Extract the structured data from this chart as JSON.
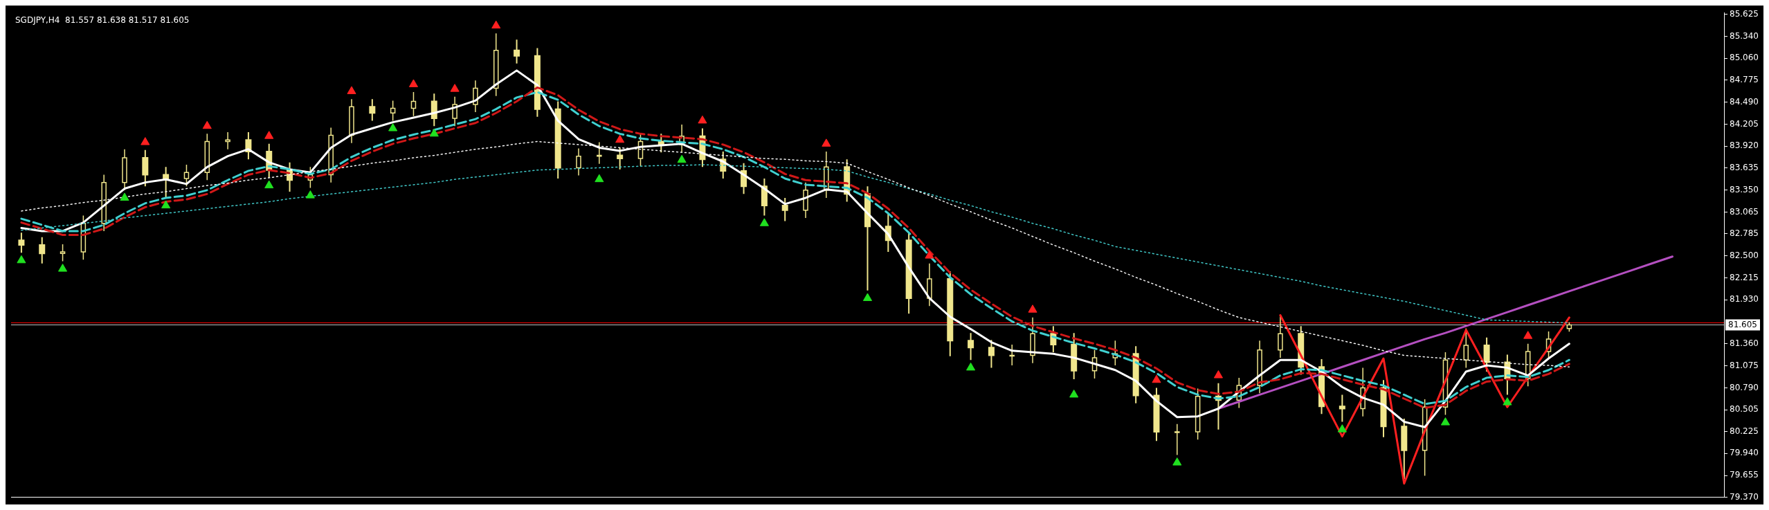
{
  "chart_data": {
    "type": "candlestick",
    "title": "SGDJPY,H4  81.557 81.638 81.517 81.605",
    "categories": [
      null,
      null,
      null,
      null,
      null,
      null,
      null,
      null,
      null,
      null,
      null,
      null,
      null,
      null,
      null,
      null,
      null,
      null,
      null,
      null,
      null,
      null,
      null,
      null,
      null,
      null,
      null,
      null,
      null,
      null,
      null,
      null,
      null,
      null,
      null,
      null,
      null,
      null,
      null,
      null,
      null,
      null,
      null,
      null,
      null,
      null,
      null,
      null,
      null,
      null,
      null,
      null,
      null,
      null,
      null,
      null,
      null,
      null,
      null,
      null,
      null,
      null,
      null,
      null,
      null,
      null,
      null,
      null,
      null,
      null,
      null,
      null,
      null,
      null,
      null,
      null,
      null,
      null,
      null,
      null,
      null,
      null,
      null
    ],
    "color": "#f0e68c",
    "ohlc": [
      [
        82.7,
        82.8,
        82.54,
        82.64
      ],
      [
        82.64,
        82.74,
        82.4,
        82.53
      ],
      [
        82.53,
        82.65,
        82.43,
        82.55
      ],
      [
        82.55,
        83.02,
        82.45,
        82.92
      ],
      [
        82.92,
        83.55,
        82.82,
        83.45
      ],
      [
        83.45,
        83.88,
        83.35,
        83.77
      ],
      [
        83.77,
        83.87,
        83.4,
        83.55
      ],
      [
        83.55,
        83.65,
        83.25,
        83.5
      ],
      [
        83.5,
        83.68,
        83.4,
        83.58
      ],
      [
        83.58,
        84.08,
        83.48,
        83.98
      ],
      [
        83.98,
        84.1,
        83.88,
        84.0
      ],
      [
        84.0,
        84.1,
        83.75,
        83.85
      ],
      [
        83.85,
        83.95,
        83.51,
        83.61
      ],
      [
        83.61,
        83.71,
        83.33,
        83.48
      ],
      [
        83.48,
        83.65,
        83.38,
        83.55
      ],
      [
        83.55,
        84.16,
        83.45,
        84.06
      ],
      [
        84.06,
        84.53,
        83.96,
        84.43
      ],
      [
        84.43,
        84.53,
        84.25,
        84.35
      ],
      [
        84.35,
        84.51,
        84.25,
        84.41
      ],
      [
        84.41,
        84.62,
        84.31,
        84.5
      ],
      [
        84.5,
        84.6,
        84.18,
        84.28
      ],
      [
        84.28,
        84.56,
        84.18,
        84.46
      ],
      [
        84.46,
        84.77,
        84.36,
        84.67
      ],
      [
        84.67,
        85.38,
        84.57,
        85.16
      ],
      [
        85.16,
        85.3,
        84.99,
        85.09
      ],
      [
        85.09,
        85.19,
        84.3,
        84.4
      ],
      [
        84.4,
        84.5,
        83.5,
        83.64
      ],
      [
        83.64,
        83.89,
        83.54,
        83.79
      ],
      [
        83.79,
        83.97,
        83.69,
        83.8
      ],
      [
        83.8,
        83.9,
        83.62,
        83.76
      ],
      [
        83.76,
        84.08,
        83.66,
        83.98
      ],
      [
        83.98,
        84.08,
        83.84,
        83.94
      ],
      [
        83.94,
        84.2,
        83.84,
        84.05
      ],
      [
        84.05,
        84.15,
        83.65,
        83.75
      ],
      [
        83.75,
        83.85,
        83.5,
        83.6
      ],
      [
        83.6,
        83.7,
        83.3,
        83.4
      ],
      [
        83.4,
        83.5,
        83.02,
        83.15
      ],
      [
        83.15,
        83.25,
        82.95,
        83.09
      ],
      [
        83.09,
        83.45,
        82.99,
        83.35
      ],
      [
        83.35,
        83.85,
        83.25,
        83.65
      ],
      [
        83.65,
        83.75,
        83.2,
        83.3
      ],
      [
        83.3,
        83.4,
        82.05,
        82.88
      ],
      [
        82.88,
        83.05,
        82.55,
        82.7
      ],
      [
        82.7,
        82.8,
        81.75,
        81.95
      ],
      [
        81.95,
        82.4,
        81.85,
        82.2
      ],
      [
        82.2,
        82.3,
        81.2,
        81.4
      ],
      [
        81.4,
        81.5,
        81.15,
        81.31
      ],
      [
        81.31,
        81.41,
        81.05,
        81.21
      ],
      [
        81.21,
        81.35,
        81.08,
        81.21
      ],
      [
        81.21,
        81.7,
        81.11,
        81.49
      ],
      [
        81.49,
        81.59,
        81.25,
        81.35
      ],
      [
        81.35,
        81.5,
        80.9,
        81.01
      ],
      [
        81.01,
        81.28,
        80.91,
        81.18
      ],
      [
        81.18,
        81.4,
        81.08,
        81.23
      ],
      [
        81.23,
        81.33,
        80.59,
        80.69
      ],
      [
        80.69,
        80.79,
        80.1,
        80.22
      ],
      [
        80.22,
        80.32,
        79.92,
        80.22
      ],
      [
        80.22,
        80.78,
        80.12,
        80.68
      ],
      [
        80.68,
        80.85,
        80.25,
        80.63
      ],
      [
        80.63,
        80.92,
        80.53,
        80.82
      ],
      [
        80.82,
        81.4,
        80.72,
        81.28
      ],
      [
        81.28,
        81.73,
        81.18,
        81.49
      ],
      [
        81.49,
        81.59,
        80.96,
        81.06
      ],
      [
        81.06,
        81.16,
        80.45,
        80.55
      ],
      [
        80.55,
        80.7,
        80.35,
        80.52
      ],
      [
        80.52,
        81.05,
        80.42,
        80.79
      ],
      [
        80.79,
        80.89,
        80.15,
        80.29
      ],
      [
        80.29,
        80.39,
        79.61,
        79.98
      ],
      [
        79.98,
        80.64,
        79.65,
        80.54
      ],
      [
        80.54,
        81.25,
        80.44,
        81.15
      ],
      [
        81.15,
        81.56,
        81.05,
        81.34
      ],
      [
        81.34,
        81.44,
        81.0,
        81.12
      ],
      [
        81.12,
        81.22,
        80.7,
        80.91
      ],
      [
        80.91,
        81.36,
        80.81,
        81.26
      ],
      [
        81.26,
        81.52,
        81.16,
        81.42
      ],
      [
        81.557,
        81.638,
        81.517,
        81.605
      ],
      null,
      null,
      null,
      null,
      null,
      null,
      null
    ],
    "series": [
      {
        "type": "line",
        "color": "#f5f5f5",
        "line_style": "dotted",
        "values": [
          83.08,
          83.12,
          83.15,
          83.19,
          83.22,
          83.26,
          83.3,
          83.33,
          83.37,
          83.41,
          83.44,
          83.48,
          83.51,
          83.55,
          83.59,
          83.62,
          83.66,
          83.7,
          83.73,
          83.77,
          83.8,
          83.84,
          83.88,
          83.91,
          83.95,
          83.98,
          83.96,
          83.94,
          83.92,
          83.9,
          83.88,
          83.86,
          83.84,
          83.82,
          83.8,
          83.78,
          83.76,
          83.75,
          83.73,
          83.72,
          83.7,
          83.59,
          83.49,
          83.38,
          83.28,
          83.17,
          83.07,
          82.96,
          82.86,
          82.75,
          82.64,
          82.54,
          82.43,
          82.33,
          82.22,
          82.12,
          82.01,
          81.91,
          81.8,
          81.7,
          81.64,
          81.58,
          81.52,
          81.46,
          81.4,
          81.34,
          81.27,
          81.21,
          81.19,
          81.17,
          81.15,
          81.13,
          81.11,
          81.09,
          81.08,
          81.06,
          null,
          null,
          null,
          null,
          null,
          null,
          null
        ]
      },
      {
        "type": "line",
        "color": "#40c8c8",
        "line_style": "dotted",
        "values": [
          82.83,
          82.86,
          82.89,
          82.92,
          82.95,
          82.99,
          83.02,
          83.05,
          83.08,
          83.11,
          83.14,
          83.17,
          83.2,
          83.24,
          83.27,
          83.3,
          83.33,
          83.36,
          83.39,
          83.42,
          83.45,
          83.49,
          83.52,
          83.55,
          83.58,
          83.61,
          83.62,
          83.63,
          83.64,
          83.65,
          83.66,
          83.67,
          83.67,
          83.68,
          83.67,
          83.66,
          83.65,
          83.64,
          83.63,
          83.62,
          83.6,
          83.52,
          83.45,
          83.37,
          83.3,
          83.22,
          83.15,
          83.07,
          83.0,
          82.92,
          82.85,
          82.77,
          82.7,
          82.62,
          82.57,
          82.52,
          82.47,
          82.42,
          82.37,
          82.32,
          82.27,
          82.22,
          82.17,
          82.11,
          82.06,
          82.01,
          81.96,
          81.91,
          81.85,
          81.79,
          81.73,
          81.67,
          81.66,
          81.65,
          81.64,
          81.63,
          null,
          null,
          null,
          null,
          null,
          null,
          null
        ]
      },
      {
        "type": "line",
        "color": "#d01818",
        "line_style": "dashed",
        "values": [
          82.93,
          82.85,
          82.77,
          82.77,
          82.85,
          83.0,
          83.13,
          83.2,
          83.23,
          83.3,
          83.43,
          83.55,
          83.61,
          83.57,
          83.51,
          83.57,
          83.73,
          83.85,
          83.95,
          84.02,
          84.08,
          84.15,
          84.22,
          84.35,
          84.5,
          84.68,
          84.58,
          84.39,
          84.24,
          84.14,
          84.08,
          84.05,
          84.03,
          84.01,
          83.94,
          83.84,
          83.71,
          83.56,
          83.48,
          83.46,
          83.44,
          83.31,
          83.11,
          82.86,
          82.56,
          82.28,
          82.06,
          81.88,
          81.71,
          81.59,
          81.51,
          81.43,
          81.36,
          81.28,
          81.18,
          81.04,
          80.86,
          80.76,
          80.71,
          80.74,
          80.86,
          80.9,
          80.98,
          80.97,
          80.9,
          80.83,
          80.77,
          80.65,
          80.53,
          80.57,
          80.75,
          80.87,
          80.9,
          80.88,
          80.97,
          81.1,
          null,
          null,
          null,
          null,
          null,
          null,
          null
        ]
      },
      {
        "type": "line",
        "color": "#40d0d0",
        "line_style": "dashed",
        "values": [
          82.98,
          82.9,
          82.82,
          82.82,
          82.9,
          83.05,
          83.18,
          83.25,
          83.28,
          83.35,
          83.48,
          83.6,
          83.66,
          83.62,
          83.56,
          83.62,
          83.78,
          83.9,
          84.0,
          84.07,
          84.13,
          84.2,
          84.27,
          84.4,
          84.55,
          84.62,
          84.52,
          84.33,
          84.18,
          84.08,
          84.02,
          83.99,
          83.97,
          83.95,
          83.88,
          83.78,
          83.65,
          83.5,
          83.42,
          83.4,
          83.38,
          83.25,
          83.05,
          82.8,
          82.5,
          82.22,
          82.0,
          81.82,
          81.65,
          81.53,
          81.45,
          81.37,
          81.3,
          81.22,
          81.12,
          80.98,
          80.8,
          80.7,
          80.65,
          80.68,
          80.8,
          80.95,
          81.03,
          81.02,
          80.95,
          80.88,
          80.82,
          80.7,
          80.58,
          80.62,
          80.8,
          80.92,
          80.95,
          80.93,
          81.02,
          81.15,
          null,
          null,
          null,
          null,
          null,
          null,
          null
        ]
      },
      {
        "type": "line",
        "color": "#ffffff",
        "line_style": "solid",
        "values": [
          82.86,
          82.82,
          82.82,
          82.93,
          83.15,
          83.37,
          83.45,
          83.49,
          83.43,
          83.65,
          83.79,
          83.88,
          83.71,
          83.62,
          83.58,
          83.9,
          84.07,
          84.15,
          84.23,
          84.29,
          84.35,
          84.42,
          84.51,
          84.72,
          84.9,
          84.71,
          84.25,
          84.01,
          83.9,
          83.86,
          83.91,
          83.93,
          83.95,
          83.83,
          83.72,
          83.55,
          83.37,
          83.17,
          83.25,
          83.36,
          83.33,
          83.05,
          82.78,
          82.35,
          81.95,
          81.71,
          81.55,
          81.38,
          81.27,
          81.25,
          81.23,
          81.18,
          81.1,
          81.02,
          80.88,
          80.62,
          80.41,
          80.42,
          80.52,
          80.74,
          80.95,
          81.15,
          81.15,
          81.0,
          80.8,
          80.66,
          80.57,
          80.35,
          80.28,
          80.62,
          81.0,
          81.08,
          81.05,
          80.95,
          81.17,
          81.36,
          null,
          null,
          null,
          null,
          null,
          null,
          null
        ]
      },
      {
        "type": "line",
        "color": "#ff2020",
        "line_style": "solid",
        "values": [
          null,
          null,
          null,
          null,
          null,
          null,
          null,
          null,
          null,
          null,
          null,
          null,
          null,
          null,
          null,
          null,
          null,
          null,
          null,
          null,
          null,
          null,
          null,
          null,
          null,
          null,
          null,
          null,
          null,
          null,
          null,
          null,
          null,
          null,
          null,
          null,
          null,
          null,
          null,
          null,
          null,
          null,
          null,
          null,
          null,
          null,
          null,
          null,
          null,
          null,
          null,
          null,
          null,
          null,
          null,
          null,
          null,
          null,
          null,
          null,
          null,
          81.73,
          81.21,
          80.68,
          80.16,
          80.67,
          81.17,
          79.55,
          80.23,
          80.88,
          81.54,
          81.04,
          80.54,
          80.93,
          81.31,
          81.7,
          null,
          null,
          null,
          null,
          null,
          null,
          null
        ]
      },
      {
        "type": "line",
        "color": "#b44fc0",
        "line_style": "solid",
        "values": [
          null,
          null,
          null,
          null,
          null,
          null,
          null,
          null,
          null,
          null,
          null,
          null,
          null,
          null,
          null,
          null,
          null,
          null,
          null,
          null,
          null,
          null,
          null,
          null,
          null,
          null,
          null,
          null,
          null,
          null,
          null,
          null,
          null,
          null,
          null,
          null,
          null,
          null,
          null,
          null,
          null,
          null,
          null,
          null,
          null,
          null,
          null,
          null,
          null,
          null,
          null,
          null,
          null,
          null,
          null,
          null,
          null,
          null,
          80.52,
          80.61,
          80.7,
          80.79,
          80.88,
          80.97,
          81.06,
          81.15,
          81.24,
          81.33,
          81.42,
          81.5,
          81.59,
          81.68,
          81.77,
          81.86,
          81.95,
          82.04,
          82.13,
          82.22,
          82.31,
          82.4,
          82.49,
          null,
          null
        ]
      },
      {
        "type": "scatter",
        "color": "#ff2020",
        "marker": "triangle",
        "values": [
          null,
          null,
          null,
          null,
          null,
          null,
          83.97,
          null,
          null,
          84.18,
          null,
          null,
          84.05,
          null,
          null,
          null,
          84.63,
          null,
          null,
          84.72,
          null,
          84.66,
          null,
          85.48,
          null,
          null,
          null,
          null,
          null,
          84.0,
          null,
          null,
          null,
          84.25,
          null,
          null,
          null,
          null,
          null,
          83.95,
          null,
          null,
          null,
          null,
          82.5,
          null,
          null,
          null,
          null,
          81.8,
          null,
          null,
          null,
          null,
          null,
          80.89,
          null,
          null,
          80.95,
          null,
          null,
          null,
          null,
          null,
          null,
          null,
          null,
          null,
          null,
          null,
          null,
          null,
          null,
          81.46,
          null,
          null,
          null,
          null,
          null,
          null,
          null,
          null,
          null
        ]
      },
      {
        "type": "scatter",
        "color": "#20e020",
        "marker": "triangle",
        "values": [
          82.44,
          null,
          82.33,
          null,
          null,
          83.25,
          null,
          83.15,
          null,
          null,
          null,
          null,
          83.41,
          null,
          83.28,
          null,
          null,
          null,
          84.15,
          null,
          84.08,
          null,
          null,
          null,
          null,
          null,
          null,
          null,
          83.49,
          null,
          null,
          null,
          83.74,
          null,
          null,
          null,
          82.92,
          null,
          null,
          null,
          null,
          81.95,
          null,
          null,
          null,
          null,
          81.05,
          null,
          null,
          null,
          null,
          80.7,
          null,
          null,
          null,
          null,
          79.82,
          null,
          null,
          null,
          null,
          null,
          null,
          null,
          80.25,
          null,
          null,
          null,
          null,
          80.34,
          null,
          null,
          80.6,
          null,
          null,
          null,
          null,
          null,
          null,
          null,
          null,
          null,
          null
        ]
      }
    ],
    "ref_lines": [
      {
        "axis": "y",
        "value": 81.64,
        "label": null,
        "color": "#ff0000"
      },
      {
        "axis": "y",
        "value": 81.605,
        "label": "81.605",
        "color": "#c0c0c0"
      }
    ],
    "ylim": [
      79.37,
      85.65
    ],
    "yticks": [
      {
        "value": 79.37,
        "label": "79.370"
      },
      {
        "value": 79.655,
        "label": "79.655"
      },
      {
        "value": 79.94,
        "label": "79.940"
      },
      {
        "value": 80.225,
        "label": "80.225"
      },
      {
        "value": 80.505,
        "label": "80.505"
      },
      {
        "value": 80.79,
        "label": "80.790"
      },
      {
        "value": 81.075,
        "label": "81.075"
      },
      {
        "value": 81.36,
        "label": "81.360"
      },
      {
        "value": 81.93,
        "label": "81.930"
      },
      {
        "value": 82.215,
        "label": "82.215"
      },
      {
        "value": 82.5,
        "label": "82.500"
      },
      {
        "value": 82.785,
        "label": "82.785"
      },
      {
        "value": 83.065,
        "label": "83.065"
      },
      {
        "value": 83.35,
        "label": "83.350"
      },
      {
        "value": 83.635,
        "label": "83.635"
      },
      {
        "value": 83.92,
        "label": "83.920"
      },
      {
        "value": 84.205,
        "label": "84.205"
      },
      {
        "value": 84.49,
        "label": "84.490"
      },
      {
        "value": 84.775,
        "label": "84.775"
      },
      {
        "value": 85.06,
        "label": "85.060"
      },
      {
        "value": 85.34,
        "label": "85.340"
      },
      {
        "value": 85.625,
        "label": "85.625"
      }
    ],
    "tick_labels": "y"
  }
}
